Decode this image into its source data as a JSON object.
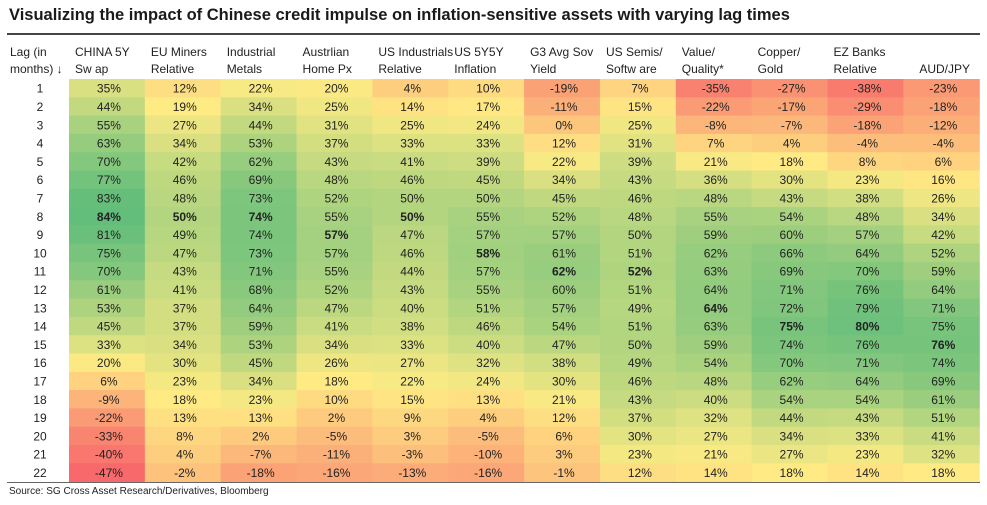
{
  "title": "Visualizing the impact of Chinese credit impulse on inflation-sensitive assets with varying lag times",
  "source": "Source: SG Cross Asset Research/Derivatives, Bloomberg",
  "chart_data": {
    "type": "heatmap",
    "title": "Visualizing the impact of Chinese credit impulse on inflation-sensitive assets with varying lag times",
    "row_header": [
      "Lag (in",
      "months) ↓"
    ],
    "columns": [
      {
        "name": [
          "CHINA 5Y",
          "Sw ap"
        ]
      },
      {
        "name": [
          "EU Miners",
          "Relative"
        ]
      },
      {
        "name": [
          "Industrial",
          "Metals"
        ]
      },
      {
        "name": [
          "Austrlian",
          "Home Px"
        ]
      },
      {
        "name": [
          "US Industrials",
          "Relative"
        ]
      },
      {
        "name": [
          "US 5Y5Y",
          "Inflation"
        ]
      },
      {
        "name": [
          "G3 Avg Sov",
          "Yield"
        ]
      },
      {
        "name": [
          "US Semis/",
          "Softw are"
        ]
      },
      {
        "name": [
          "Value/",
          "Quality*"
        ]
      },
      {
        "name": [
          "Copper/",
          "Gold"
        ]
      },
      {
        "name": [
          "EZ Banks",
          "Relative"
        ]
      },
      {
        "name": [
          "AUD/JPY"
        ]
      }
    ],
    "lags": [
      1,
      2,
      3,
      4,
      5,
      6,
      7,
      8,
      9,
      10,
      11,
      12,
      13,
      14,
      15,
      16,
      17,
      18,
      19,
      20,
      21,
      22
    ],
    "values": [
      [
        35,
        12,
        22,
        20,
        4,
        10,
        -19,
        7,
        -35,
        -27,
        -38,
        -23
      ],
      [
        44,
        19,
        34,
        25,
        14,
        17,
        -11,
        15,
        -22,
        -17,
        -29,
        -18
      ],
      [
        55,
        27,
        44,
        31,
        25,
        24,
        0,
        25,
        -8,
        -7,
        -18,
        -12
      ],
      [
        63,
        34,
        53,
        37,
        33,
        33,
        12,
        31,
        7,
        4,
        -4,
        -4
      ],
      [
        70,
        42,
        62,
        43,
        41,
        39,
        22,
        39,
        21,
        18,
        8,
        6
      ],
      [
        77,
        46,
        69,
        48,
        46,
        45,
        34,
        43,
        36,
        30,
        23,
        16
      ],
      [
        83,
        48,
        73,
        52,
        50,
        50,
        45,
        46,
        48,
        43,
        38,
        26
      ],
      [
        84,
        50,
        74,
        55,
        50,
        55,
        52,
        48,
        55,
        54,
        48,
        34
      ],
      [
        81,
        49,
        74,
        57,
        47,
        57,
        57,
        50,
        59,
        60,
        57,
        42
      ],
      [
        75,
        47,
        73,
        57,
        46,
        58,
        61,
        51,
        62,
        66,
        64,
        52
      ],
      [
        70,
        43,
        71,
        55,
        44,
        57,
        62,
        52,
        63,
        69,
        70,
        59
      ],
      [
        61,
        41,
        68,
        52,
        43,
        55,
        60,
        51,
        64,
        71,
        76,
        64
      ],
      [
        53,
        37,
        64,
        47,
        40,
        51,
        57,
        49,
        64,
        72,
        79,
        71
      ],
      [
        45,
        37,
        59,
        41,
        38,
        46,
        54,
        51,
        63,
        75,
        80,
        75
      ],
      [
        33,
        34,
        53,
        34,
        33,
        40,
        47,
        50,
        59,
        74,
        76,
        76
      ],
      [
        20,
        30,
        45,
        26,
        27,
        32,
        38,
        49,
        54,
        70,
        71,
        74
      ],
      [
        6,
        23,
        34,
        18,
        22,
        24,
        30,
        46,
        48,
        62,
        64,
        69
      ],
      [
        -9,
        18,
        23,
        10,
        15,
        13,
        21,
        43,
        40,
        54,
        54,
        61
      ],
      [
        -22,
        13,
        13,
        2,
        9,
        4,
        12,
        37,
        32,
        44,
        43,
        51
      ],
      [
        -33,
        8,
        2,
        -5,
        3,
        -5,
        6,
        30,
        27,
        34,
        33,
        41
      ],
      [
        -40,
        4,
        -7,
        -11,
        -3,
        -10,
        3,
        23,
        21,
        27,
        23,
        32
      ],
      [
        -47,
        -2,
        -18,
        -16,
        -13,
        -16,
        -1,
        12,
        14,
        18,
        14,
        18
      ]
    ],
    "bold_cells": [
      [
        7,
        0
      ],
      [
        7,
        1
      ],
      [
        7,
        2
      ],
      [
        8,
        3
      ],
      [
        7,
        4
      ],
      [
        9,
        5
      ],
      [
        10,
        6
      ],
      [
        10,
        7
      ],
      [
        12,
        8
      ],
      [
        13,
        9
      ],
      [
        13,
        10
      ],
      [
        14,
        11
      ]
    ],
    "value_suffix": "%",
    "color_scale": {
      "low": "#f8696b",
      "mid": "#ffeb84",
      "high": "#63be7b"
    }
  }
}
